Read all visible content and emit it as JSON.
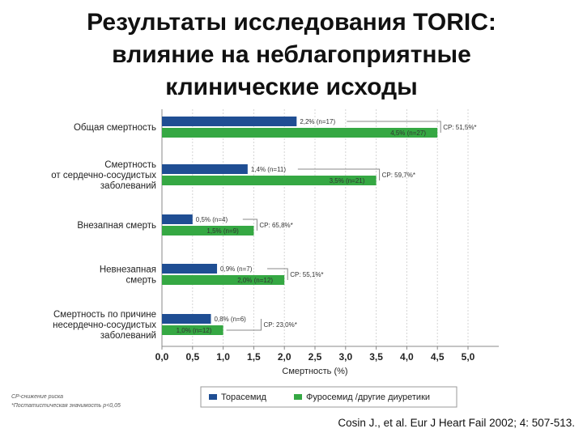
{
  "slide": {
    "title_lines": [
      "Результаты исследования TORIC:",
      "влияние на неблагоприятные",
      "клинические исходы"
    ],
    "footnote_lines": [
      "СР-снижение риска",
      "*Поcтатистическая значимость p<0,05"
    ],
    "citation": "Cosin J., et al. Eur J Heart Fail 2002; 4: 507-513."
  },
  "chart_data": {
    "type": "bar",
    "orientation": "horizontal",
    "categories": [
      [
        "Общая смертность"
      ],
      [
        "Смертность",
        "от сердечно-сосудистых",
        "заболеваний"
      ],
      [
        "Внезапная смерть"
      ],
      [
        "Невнезапная",
        "смерть"
      ],
      [
        "Смертность по причине",
        "несердечно-сосудистых",
        "заболеваний"
      ]
    ],
    "series": [
      {
        "name": "Торасемид",
        "color": "#1f4e93",
        "values": [
          2.2,
          1.4,
          0.5,
          0.9,
          0.8
        ],
        "labels": [
          "2,2% (n=17)",
          "1,4% (n=11)",
          "0,5% (n=4)",
          "0,9% (n=7)",
          "0,8% (n=6)"
        ]
      },
      {
        "name": "Фуросемид /другие диуретики",
        "color": "#35a843",
        "values": [
          4.5,
          3.5,
          1.5,
          2.0,
          1.0
        ],
        "labels": [
          "4,5% (n=27)",
          "3,5% (n=21)",
          "1,5% (n=9)",
          "2,0% (n=12)",
          "1,0% (n=12)"
        ]
      }
    ],
    "annotations": [
      "CP: 51,5%*",
      "CP: 59,7%*",
      "CP: 65,8%*",
      "CP: 55,1%*",
      "CP: 23,0%*"
    ],
    "xlabel": "Смертность (%)",
    "xlim": [
      0,
      5.5
    ],
    "xticks": [
      0,
      0.5,
      1.0,
      1.5,
      2.0,
      2.5,
      3.0,
      3.5,
      4.0,
      4.5,
      5.0
    ],
    "xtick_labels": [
      "0,0",
      "0,5",
      "1,0",
      "1,5",
      "2,0",
      "2,5",
      "3,0",
      "3,5",
      "4,0",
      "4,5",
      "5,0"
    ],
    "grid": true,
    "legend_position": "bottom"
  }
}
